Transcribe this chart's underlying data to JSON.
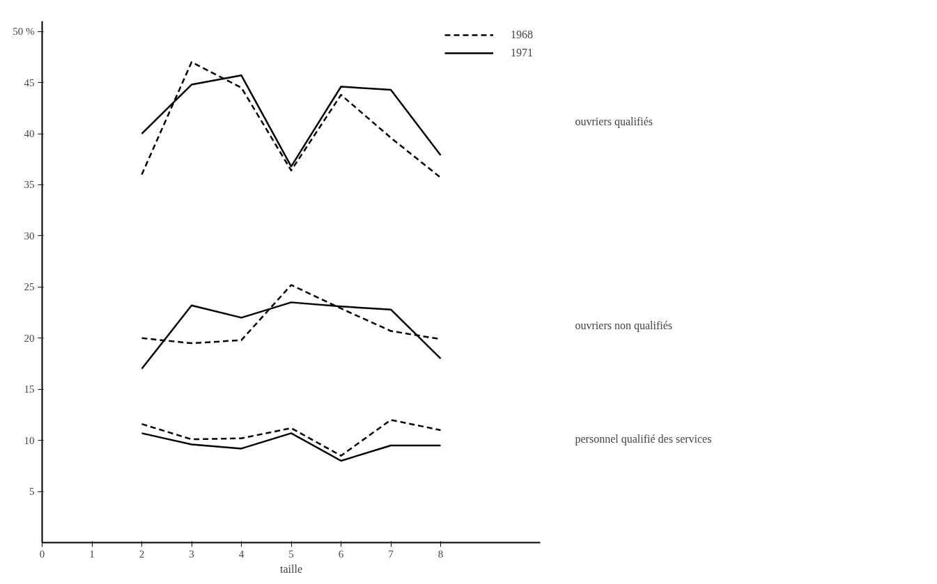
{
  "chart_data": {
    "type": "line",
    "xlabel": "taille",
    "x": [
      2,
      3,
      4,
      5,
      6,
      7,
      8
    ],
    "xlim": [
      0,
      10
    ],
    "ylim": [
      0,
      51
    ],
    "xticks": [
      0,
      1,
      2,
      3,
      4,
      5,
      6,
      7,
      8
    ],
    "yticks": [
      5,
      10,
      15,
      20,
      25,
      30,
      35,
      40,
      45,
      {
        "value": 50,
        "label": "50 %"
      }
    ],
    "grid": false,
    "legend": "top right",
    "marker": "none",
    "series": [
      {
        "name": "1968",
        "color": "#000000",
        "line_style": "dashed",
        "values": [
          36.0,
          47.0,
          44.5,
          36.4,
          43.8,
          39.6,
          35.7
        ]
      },
      {
        "name": "1971",
        "color": "#000000",
        "line_style": "solid",
        "values": [
          40.0,
          44.8,
          45.7,
          36.8,
          44.6,
          44.3,
          37.9
        ]
      },
      {
        "color": "#000000",
        "line_style": "dashed",
        "values": [
          20.0,
          19.5,
          19.8,
          25.2,
          22.9,
          20.7,
          19.9
        ]
      },
      {
        "color": "#000000",
        "line_style": "solid",
        "values": [
          17.0,
          23.2,
          22.0,
          23.5,
          23.1,
          22.8,
          18.0
        ]
      },
      {
        "color": "#000000",
        "line_style": "dashed",
        "values": [
          11.6,
          10.1,
          10.2,
          11.2,
          8.5,
          12.0,
          11.0
        ]
      },
      {
        "color": "#000000",
        "line_style": "solid",
        "values": [
          10.7,
          9.6,
          9.2,
          10.7,
          8.0,
          9.5,
          9.5
        ]
      }
    ],
    "annotations": [
      "ouvriers qualifiés",
      "ouvriers non qualifiés",
      "personnel qualifié des services"
    ]
  }
}
